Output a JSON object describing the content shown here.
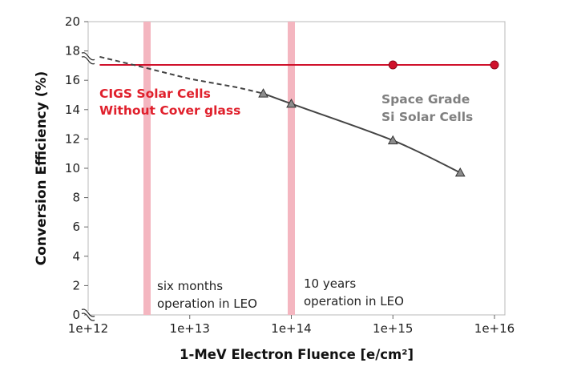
{
  "chart_data": {
    "type": "line",
    "xlabel": "1-MeV Electron Fluence [e/cm²]",
    "ylabel": "Conversion Efficiency (%)",
    "x_scale": "log",
    "xlim": [
      1000000000000.0,
      1e+16
    ],
    "ylim": [
      0,
      20
    ],
    "x_ticks": [
      {
        "value": 1000000000000.0,
        "label": "1e+12"
      },
      {
        "value": 10000000000000.0,
        "label": "1e+13"
      },
      {
        "value": 100000000000000.0,
        "label": "1e+14"
      },
      {
        "value": 1000000000000000.0,
        "label": "1e+15"
      },
      {
        "value": 1e+16,
        "label": "1e+16"
      }
    ],
    "y_ticks": [
      0,
      2,
      4,
      6,
      8,
      10,
      12,
      14,
      16,
      18,
      20
    ],
    "axis_break": {
      "y_values": [
        0,
        17.5
      ]
    },
    "series": [
      {
        "key": "cigs",
        "color": "#d0112b",
        "marker": "circle",
        "line_x": [
          1300000000000.0,
          1e+16
        ],
        "line_y": [
          17.05,
          17.05
        ],
        "points": [
          {
            "x": 1000000000000000.0,
            "y": 17.05
          },
          {
            "x": 1e+16,
            "y": 17.05
          }
        ]
      },
      {
        "key": "si",
        "color": "#444444",
        "marker_fill": "#8c8c8c",
        "marker": "triangle",
        "dashed_segment": [
          {
            "x": 1300000000000.0,
            "y": 17.6
          },
          {
            "x": 3000000000000.0,
            "y": 17.0
          },
          {
            "x": 10000000000000.0,
            "y": 16.1
          },
          {
            "x": 30000000000000.0,
            "y": 15.5
          },
          {
            "x": 53000000000000.0,
            "y": 15.1
          }
        ],
        "points": [
          {
            "x": 53000000000000.0,
            "y": 15.1
          },
          {
            "x": 100000000000000.0,
            "y": 14.4
          },
          {
            "x": 1000000000000000.0,
            "y": 11.9
          },
          {
            "x": 4600000000000000.0,
            "y": 9.7
          }
        ]
      }
    ],
    "bands": [
      {
        "x": 3800000000000.0,
        "label_lines": [
          "six months",
          "operation in LEO"
        ]
      },
      {
        "x": 100000000000000.0,
        "label_lines": [
          "10 years",
          "operation in LEO"
        ]
      }
    ],
    "annotations": [
      {
        "key": "cigs_label",
        "lines": [
          "CIGS Solar Cells",
          "Without Cover glass"
        ],
        "color": "#e0202c"
      },
      {
        "key": "si_label",
        "lines": [
          "Space Grade",
          "Si Solar Cells"
        ],
        "color": "#7f7f7f"
      }
    ],
    "grid": false,
    "band_color": "#f4b6c0"
  }
}
